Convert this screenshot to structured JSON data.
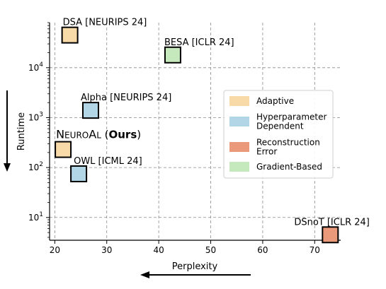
{
  "chart_data": {
    "type": "scatter",
    "xlabel": "Perplexity",
    "ylabel": "Runtime",
    "xlim": [
      19,
      75
    ],
    "ylim": [
      3.5,
      80000
    ],
    "y_scale": "log",
    "grid": true,
    "x_ticks": [
      {
        "value": 20,
        "label": "20"
      },
      {
        "value": 30,
        "label": "30"
      },
      {
        "value": 40,
        "label": "40"
      },
      {
        "value": 50,
        "label": "50"
      },
      {
        "value": 60,
        "label": "60"
      },
      {
        "value": 70,
        "label": "70"
      }
    ],
    "y_ticks": [
      {
        "value": 10,
        "base": "10",
        "exp": "1"
      },
      {
        "value": 100,
        "base": "10",
        "exp": "2"
      },
      {
        "value": 1000,
        "base": "10",
        "exp": "3"
      },
      {
        "value": 10000,
        "base": "10",
        "exp": "4"
      }
    ],
    "legend_position": "right",
    "categories": [
      {
        "name": "Adaptive",
        "color": "#f8d9a8"
      },
      {
        "name": "Hyperparameter\nDependent",
        "color": "#b3d6e6"
      },
      {
        "name": "Reconstruction\nError",
        "color": "#ea9a7a"
      },
      {
        "name": "Gradient-Based",
        "color": "#c6e8bd"
      }
    ],
    "points": [
      {
        "label": "DSA [NEURIPS 24]",
        "x": 22.9,
        "y": 45000,
        "category": "Adaptive"
      },
      {
        "label": "BESA [ICLR 24]",
        "x": 42.7,
        "y": 18000,
        "category": "Gradient-Based"
      },
      {
        "label": "Alpha [NEURIPS 24]",
        "x": 26.9,
        "y": 1400,
        "category": "Hyperparameter\nDependent"
      },
      {
        "label_parts": [
          "NEUROAL",
          " (",
          "Ours",
          ")"
        ],
        "x": 21.6,
        "y": 230,
        "category": "Adaptive"
      },
      {
        "label": "OWL [ICML 24]",
        "x": 24.6,
        "y": 75,
        "category": "Hyperparameter\nDependent"
      },
      {
        "label": "DSnoT [ICLR 24]",
        "x": 73.0,
        "y": 4.5,
        "category": "Reconstruction\nError"
      }
    ]
  }
}
